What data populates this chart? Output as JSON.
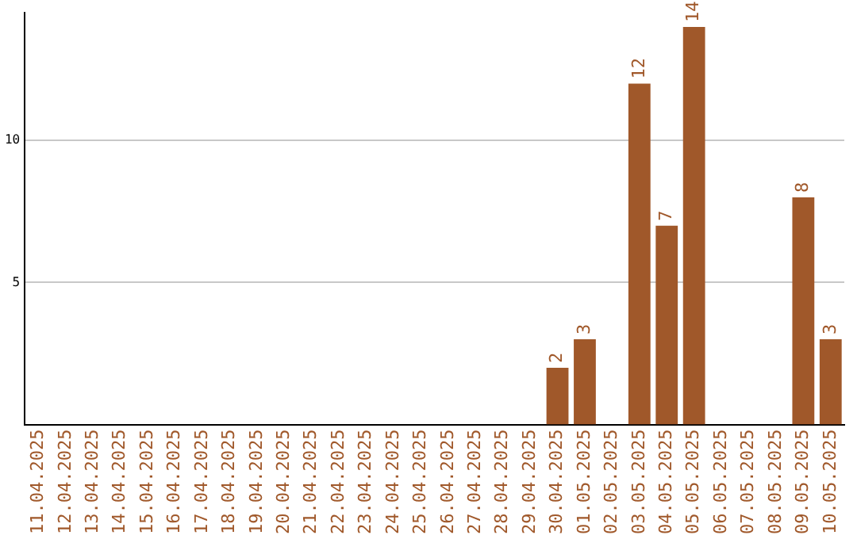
{
  "chart_data": {
    "type": "bar",
    "categories": [
      "11.04.2025",
      "12.04.2025",
      "13.04.2025",
      "14.04.2025",
      "15.04.2025",
      "16.04.2025",
      "17.04.2025",
      "18.04.2025",
      "19.04.2025",
      "20.04.2025",
      "21.04.2025",
      "22.04.2025",
      "23.04.2025",
      "24.04.2025",
      "25.04.2025",
      "26.04.2025",
      "27.04.2025",
      "28.04.2025",
      "29.04.2025",
      "30.04.2025",
      "01.05.2025",
      "02.05.2025",
      "03.05.2025",
      "04.05.2025",
      "05.05.2025",
      "06.05.2025",
      "07.05.2025",
      "08.05.2025",
      "09.05.2025",
      "10.05.2025"
    ],
    "values": [
      0,
      0,
      0,
      0,
      0,
      0,
      0,
      0,
      0,
      0,
      0,
      0,
      0,
      0,
      0,
      0,
      0,
      0,
      0,
      2,
      3,
      0,
      12,
      7,
      14,
      0,
      0,
      0,
      8,
      3
    ],
    "value_labels": [
      null,
      null,
      null,
      null,
      null,
      null,
      null,
      null,
      null,
      null,
      null,
      null,
      null,
      null,
      null,
      null,
      null,
      null,
      null,
      "2",
      "3",
      null,
      "12",
      "7",
      "14",
      null,
      null,
      null,
      "8",
      "3"
    ],
    "color": "#a0582a",
    "ylim": [
      0,
      14.5
    ],
    "yticks": [
      5,
      10
    ],
    "grid": "y",
    "legend": false
  }
}
